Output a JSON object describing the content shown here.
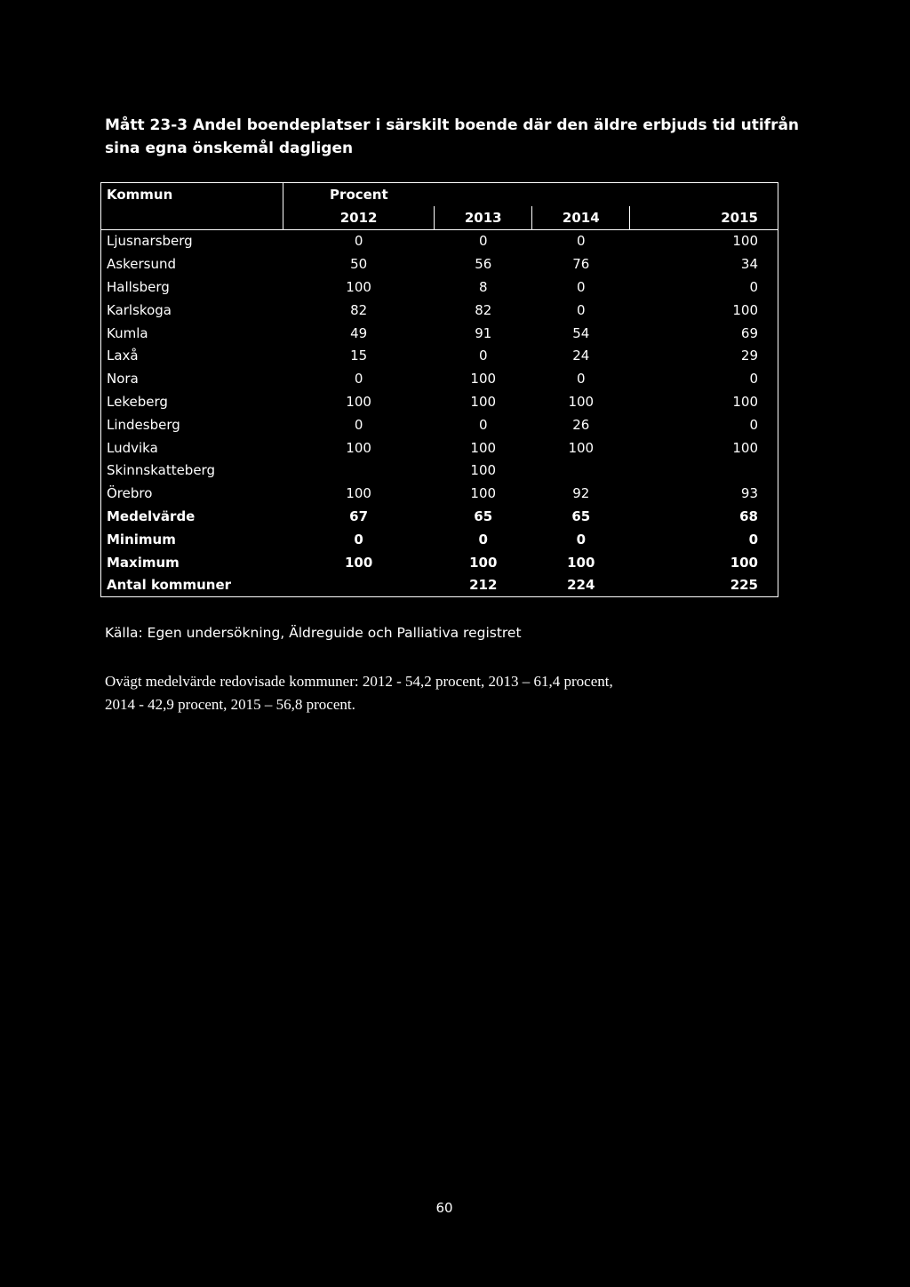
{
  "title": {
    "line1": "Mått 23-3 Andel boendeplatser i särskilt boende där den äldre erbjuds tid utifrån",
    "line2": "sina egna önskemål dagligen"
  },
  "table": {
    "col_kommun": "Kommun",
    "col_procent": "Procent",
    "years": [
      "2012",
      "2013",
      "2014",
      "2015"
    ],
    "rows": [
      {
        "name": "Ljusnarsberg",
        "values": [
          "0",
          "0",
          "0",
          "100"
        ]
      },
      {
        "name": "Askersund",
        "values": [
          "50",
          "56",
          "76",
          "34"
        ]
      },
      {
        "name": "Hallsberg",
        "values": [
          "100",
          "8",
          "0",
          "0"
        ]
      },
      {
        "name": "Karlskoga",
        "values": [
          "82",
          "82",
          "0",
          "100"
        ]
      },
      {
        "name": "Kumla",
        "values": [
          "49",
          "91",
          "54",
          "69"
        ]
      },
      {
        "name": "Laxå",
        "values": [
          "15",
          "0",
          "24",
          "29"
        ]
      },
      {
        "name": "Nora",
        "values": [
          "0",
          "100",
          "0",
          "0"
        ]
      },
      {
        "name": "Lekeberg",
        "values": [
          "100",
          "100",
          "100",
          "100"
        ]
      },
      {
        "name": "Lindesberg",
        "values": [
          "0",
          "0",
          "26",
          "0"
        ]
      },
      {
        "name": "Ludvika",
        "values": [
          "100",
          "100",
          "100",
          "100"
        ]
      },
      {
        "name": "Skinnskatteberg",
        "values": [
          "",
          "100",
          "",
          ""
        ]
      },
      {
        "name": "Örebro",
        "values": [
          "100",
          "100",
          "92",
          "93"
        ]
      }
    ],
    "summary": [
      {
        "name": "Medelvärde",
        "values": [
          "67",
          "65",
          "65",
          "68"
        ]
      },
      {
        "name": "Minimum",
        "values": [
          "0",
          "0",
          "0",
          "0"
        ]
      },
      {
        "name": "Maximum",
        "values": [
          "100",
          "100",
          "100",
          "100"
        ]
      }
    ],
    "nationally": {
      "name": "Antal kommuner",
      "values": [
        "",
        "212",
        "224",
        "225"
      ]
    }
  },
  "source": "Källa: Egen undersökning, Äldreguide och Palliativa registret",
  "note": {
    "line1": "Ovägt medelvärde redovisade kommuner: 2012 - 54,2 procent, 2013 – 61,4 procent,",
    "line2": "2014 - 42,9 procent, 2015 – 56,8 procent."
  },
  "page_number": "60"
}
